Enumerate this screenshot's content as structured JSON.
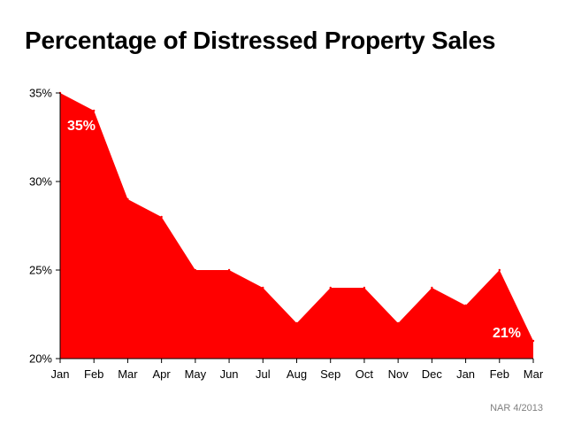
{
  "title": "Percentage of Distressed Property Sales",
  "source": "NAR 4/2013",
  "colors": {
    "area_fill": "#FF0000",
    "axis": "#000000",
    "data_label": "#FFFFFF",
    "source_text": "#808080"
  },
  "chart_data": {
    "type": "area",
    "title": "Percentage of Distressed Property Sales",
    "xlabel": "",
    "ylabel": "",
    "categories": [
      "Jan",
      "Feb",
      "Mar",
      "Apr",
      "May",
      "Jun",
      "Jul",
      "Aug",
      "Sep",
      "Oct",
      "Nov",
      "Dec",
      "Jan",
      "Feb",
      "Mar"
    ],
    "series": [
      {
        "values": [
          35,
          34,
          29,
          28,
          25,
          25,
          24,
          22,
          24,
          24,
          22,
          24,
          23,
          25,
          21
        ]
      }
    ],
    "ylim": [
      20,
      35
    ],
    "yticks": [
      20,
      25,
      30,
      35
    ],
    "ytick_labels": [
      "20%",
      "25%",
      "30%",
      "35%"
    ],
    "grid": false,
    "legend": "none",
    "annotations": [
      {
        "index": 0,
        "text": "35%"
      },
      {
        "index": 14,
        "text": "21%"
      }
    ]
  }
}
